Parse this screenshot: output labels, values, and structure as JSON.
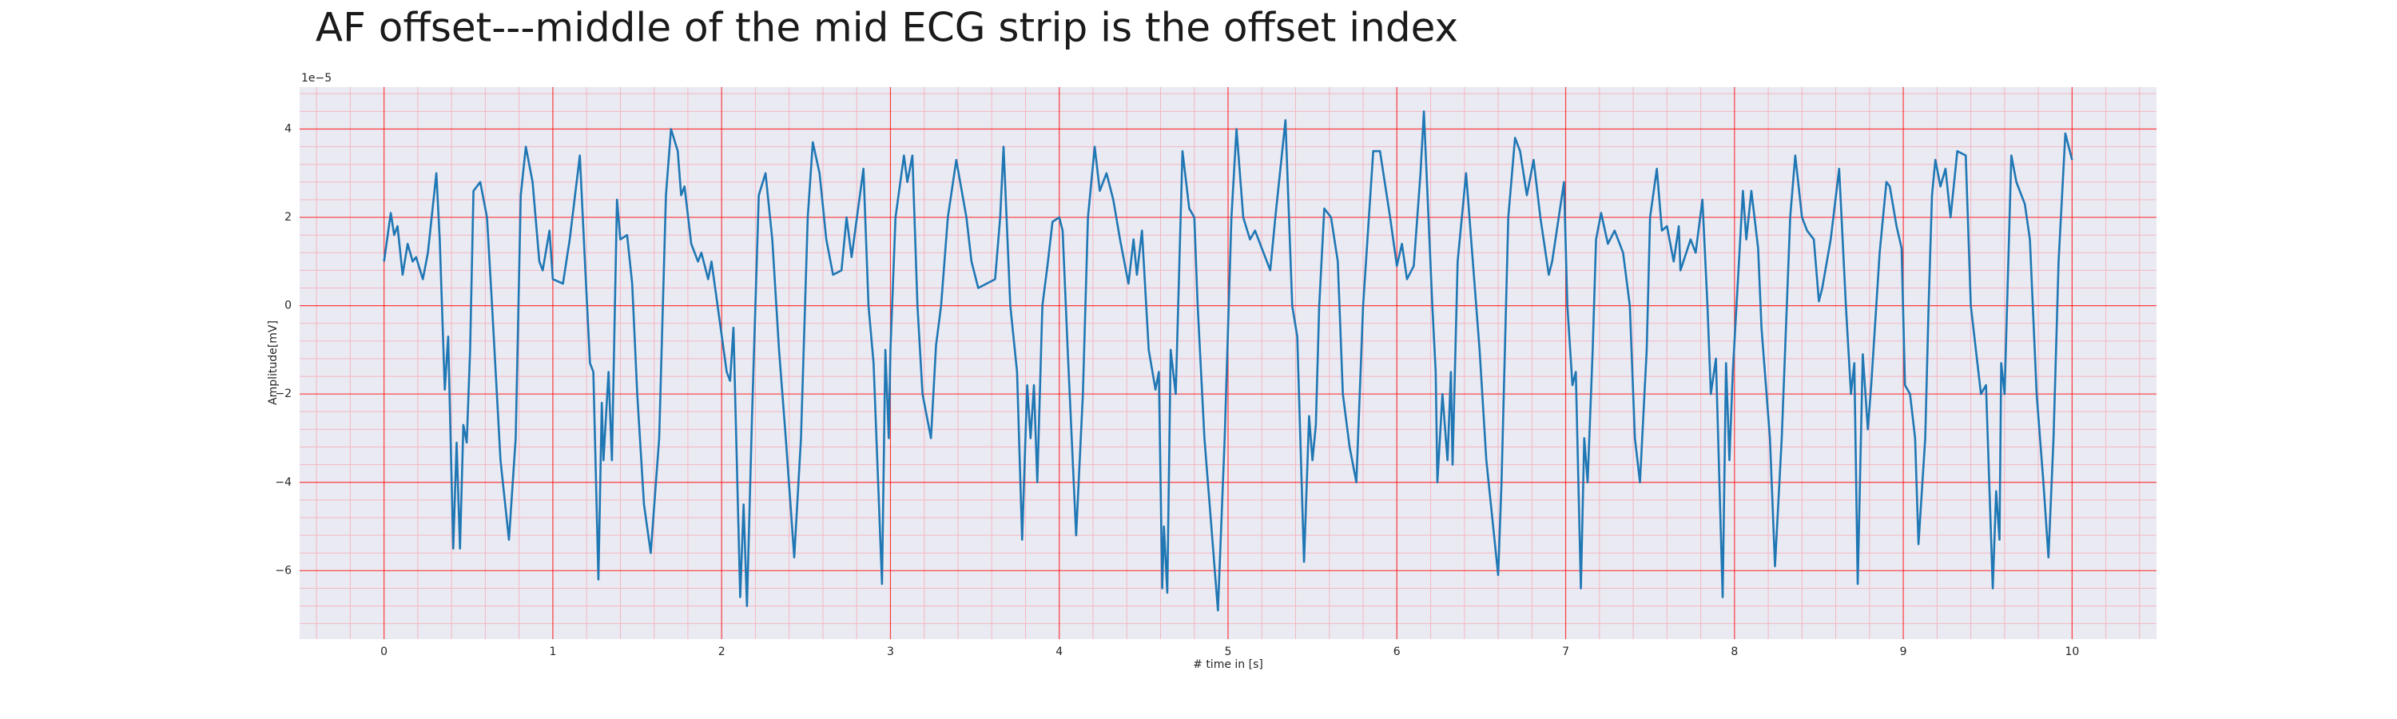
{
  "chart_data": {
    "type": "line",
    "title": "AF offset---middle of the mid ECG strip is the offset index",
    "x_label": "# time in [s]",
    "y_label": "Amplitude[mV]",
    "y_offset_label": "1e−5",
    "xlim": [
      -0.5,
      10.5
    ],
    "ylim": [
      -7.55,
      4.95
    ],
    "xticks": [
      0,
      1,
      2,
      3,
      4,
      5,
      6,
      7,
      8,
      9,
      10
    ],
    "yticks": [
      {
        "value": -6,
        "label": "−6"
      },
      {
        "value": -4,
        "label": "−4"
      },
      {
        "value": -2,
        "label": "−2"
      },
      0,
      2,
      4
    ],
    "grid": true,
    "grid_color": "#ff0000",
    "minor_grid": true,
    "minor_grid_color": "#f4b6c2",
    "background": "#eaeaf2",
    "x": [
      0,
      0.04,
      0.06,
      0.08,
      0.11,
      0.14,
      0.17,
      0.19,
      0.23,
      0.26,
      0.31,
      0.33,
      0.36,
      0.38,
      0.41,
      0.43,
      0.45,
      0.47,
      0.49,
      0.51,
      0.53,
      0.57,
      0.61,
      0.64,
      0.69,
      0.74,
      0.78,
      0.81,
      0.84,
      0.88,
      0.92,
      0.94,
      0.98,
      1.0,
      1.06,
      1.1,
      1.16,
      1.19,
      1.22,
      1.24,
      1.27,
      1.29,
      1.3,
      1.33,
      1.35,
      1.38,
      1.4,
      1.44,
      1.47,
      1.5,
      1.54,
      1.58,
      1.63,
      1.67,
      1.7,
      1.74,
      1.76,
      1.78,
      1.82,
      1.86,
      1.88,
      1.92,
      1.94,
      2.03,
      2.05,
      2.07,
      2.11,
      2.13,
      2.15,
      2.18,
      2.22,
      2.26,
      2.3,
      2.34,
      2.38,
      2.43,
      2.47,
      2.51,
      2.54,
      2.58,
      2.62,
      2.66,
      2.71,
      2.74,
      2.77,
      2.84,
      2.87,
      2.9,
      2.95,
      2.97,
      2.99,
      3.0,
      3.03,
      3.08,
      3.1,
      3.13,
      3.16,
      3.19,
      3.24,
      3.27,
      3.3,
      3.34,
      3.39,
      3.45,
      3.48,
      3.52,
      3.57,
      3.62,
      3.65,
      3.67,
      3.71,
      3.75,
      3.78,
      3.81,
      3.83,
      3.85,
      3.87,
      3.9,
      3.93,
      3.96,
      4.0,
      4.02,
      4.05,
      4.1,
      4.14,
      4.17,
      4.21,
      4.24,
      4.28,
      4.32,
      4.36,
      4.41,
      4.44,
      4.46,
      4.49,
      4.53,
      4.57,
      4.59,
      4.61,
      4.62,
      4.64,
      4.66,
      4.69,
      4.73,
      4.77,
      4.8,
      4.82,
      4.86,
      4.94,
      4.98,
      5.02,
      5.05,
      5.09,
      5.13,
      5.16,
      5.25,
      5.28,
      5.34,
      5.38,
      5.41,
      5.45,
      5.48,
      5.5,
      5.52,
      5.54,
      5.57,
      5.61,
      5.65,
      5.68,
      5.72,
      5.76,
      5.8,
      5.86,
      5.9,
      5.96,
      6.0,
      6.03,
      6.06,
      6.1,
      6.14,
      6.16,
      6.21,
      6.23,
      6.24,
      6.27,
      6.3,
      6.32,
      6.33,
      6.36,
      6.41,
      6.43,
      6.44,
      6.49,
      6.53,
      6.6,
      6.62,
      6.66,
      6.7,
      6.73,
      6.77,
      6.81,
      6.85,
      6.9,
      6.92,
      6.99,
      7.01,
      7.04,
      7.06,
      7.09,
      7.11,
      7.13,
      7.16,
      7.18,
      7.21,
      7.25,
      7.29,
      7.34,
      7.38,
      7.41,
      7.44,
      7.48,
      7.5,
      7.54,
      7.57,
      7.6,
      7.64,
      7.67,
      7.68,
      7.74,
      7.77,
      7.81,
      7.84,
      7.86,
      7.89,
      7.93,
      7.95,
      7.97,
      7.99,
      8.05,
      8.07,
      8.1,
      8.14,
      8.16,
      8.21,
      8.24,
      8.28,
      8.33,
      8.36,
      8.4,
      8.43,
      8.47,
      8.5,
      8.52,
      8.57,
      8.62,
      8.66,
      8.69,
      8.71,
      8.73,
      8.76,
      8.79,
      8.81,
      8.86,
      8.9,
      8.92,
      8.96,
      8.99,
      9.01,
      9.04,
      9.07,
      9.09,
      9.13,
      9.15,
      9.17,
      9.19,
      9.22,
      9.25,
      9.28,
      9.32,
      9.37,
      9.4,
      9.46,
      9.49,
      9.53,
      9.55,
      9.57,
      9.58,
      9.6,
      9.64,
      9.67,
      9.72,
      9.75,
      9.79,
      9.83,
      9.86,
      9.89,
      9.92,
      9.96,
      10.0
    ],
    "series": [
      {
        "color": "#1f77b4",
        "values": [
          1.0,
          2.1,
          1.6,
          1.8,
          0.7,
          1.4,
          1.0,
          1.1,
          0.6,
          1.2,
          3.0,
          1.5,
          -1.9,
          -0.7,
          -5.5,
          -3.1,
          -5.5,
          -2.7,
          -3.1,
          -1.0,
          2.6,
          2.8,
          2.0,
          0,
          -3.5,
          -5.3,
          -3.0,
          2.5,
          3.6,
          2.8,
          1.0,
          0.8,
          1.7,
          0.6,
          0.5,
          1.5,
          3.4,
          1.0,
          -1.3,
          -1.5,
          -6.2,
          -2.2,
          -3.5,
          -1.5,
          -3.5,
          2.4,
          1.5,
          1.6,
          0.5,
          -2.0,
          -4.5,
          -5.6,
          -3.0,
          2.5,
          4.0,
          3.5,
          2.5,
          2.7,
          1.4,
          1.0,
          1.2,
          0.6,
          1.0,
          -1.5,
          -1.7,
          -0.5,
          -6.6,
          -4.5,
          -6.8,
          -2.5,
          2.5,
          3.0,
          1.5,
          -1.0,
          -3.0,
          -5.7,
          -3.0,
          2.0,
          3.7,
          3.0,
          1.5,
          0.7,
          0.8,
          2.0,
          1.1,
          3.1,
          0,
          -1.3,
          -6.3,
          -1.0,
          -3.0,
          -1.0,
          2.0,
          3.4,
          2.8,
          3.4,
          0,
          -2.0,
          -3.0,
          -0.9,
          0,
          2.0,
          3.3,
          2.0,
          1.0,
          0.4,
          0.5,
          0.6,
          2.0,
          3.6,
          0,
          -1.5,
          -5.3,
          -1.8,
          -3.0,
          -1.8,
          -4.0,
          0,
          0.9,
          1.9,
          2.0,
          1.7,
          -1.0,
          -5.2,
          -2.0,
          2.0,
          3.6,
          2.6,
          3.0,
          2.4,
          1.5,
          0.5,
          1.5,
          0.7,
          1.7,
          -1.0,
          -1.9,
          -1.5,
          -6.4,
          -5.0,
          -6.5,
          -1.0,
          -2.0,
          3.5,
          2.2,
          2.0,
          0,
          -3.0,
          -6.9,
          -3.0,
          2.0,
          4.0,
          2.0,
          1.5,
          1.7,
          0.8,
          2.0,
          4.2,
          0,
          -0.7,
          -5.8,
          -2.5,
          -3.5,
          -2.7,
          0,
          2.2,
          2.0,
          1.0,
          -2.0,
          -3.2,
          -4.0,
          0,
          3.5,
          3.5,
          2.0,
          0.9,
          1.4,
          0.6,
          0.9,
          3.0,
          4.4,
          0,
          -1.5,
          -4.0,
          -2.0,
          -3.5,
          -1.5,
          -3.6,
          1.0,
          3.0,
          2.0,
          1.5,
          -1.0,
          -3.5,
          -6.1,
          -4.0,
          2.0,
          3.8,
          3.5,
          2.5,
          3.3,
          2.0,
          0.7,
          1.0,
          2.8,
          0,
          -1.8,
          -1.5,
          -6.4,
          -3.0,
          -4.0,
          -1.0,
          1.5,
          2.1,
          1.4,
          1.7,
          1.2,
          0,
          -3.0,
          -4.0,
          -1.0,
          2.0,
          3.1,
          1.7,
          1.8,
          1.0,
          1.8,
          0.8,
          1.5,
          1.2,
          2.4,
          0,
          -2.0,
          -1.2,
          -6.6,
          -1.3,
          -3.5,
          -1.5,
          2.6,
          1.5,
          2.6,
          1.3,
          -0.5,
          -3.0,
          -5.9,
          -3.0,
          2.0,
          3.4,
          2.0,
          1.7,
          1.5,
          0.1,
          0.4,
          1.5,
          3.1,
          0,
          -2.0,
          -1.3,
          -6.3,
          -1.1,
          -2.8,
          -1.8,
          1.2,
          2.8,
          2.7,
          1.8,
          1.3,
          -1.8,
          -2.0,
          -3.0,
          -5.4,
          -3.0,
          0,
          2.5,
          3.3,
          2.7,
          3.1,
          2.0,
          3.5,
          3.4,
          0,
          -2.0,
          -1.8,
          -6.4,
          -4.2,
          -5.3,
          -1.3,
          -2.0,
          3.4,
          2.8,
          2.3,
          1.5,
          -2.0,
          -4.0,
          -5.7,
          -3.0,
          1.0,
          3.9,
          3.3
        ]
      }
    ]
  }
}
